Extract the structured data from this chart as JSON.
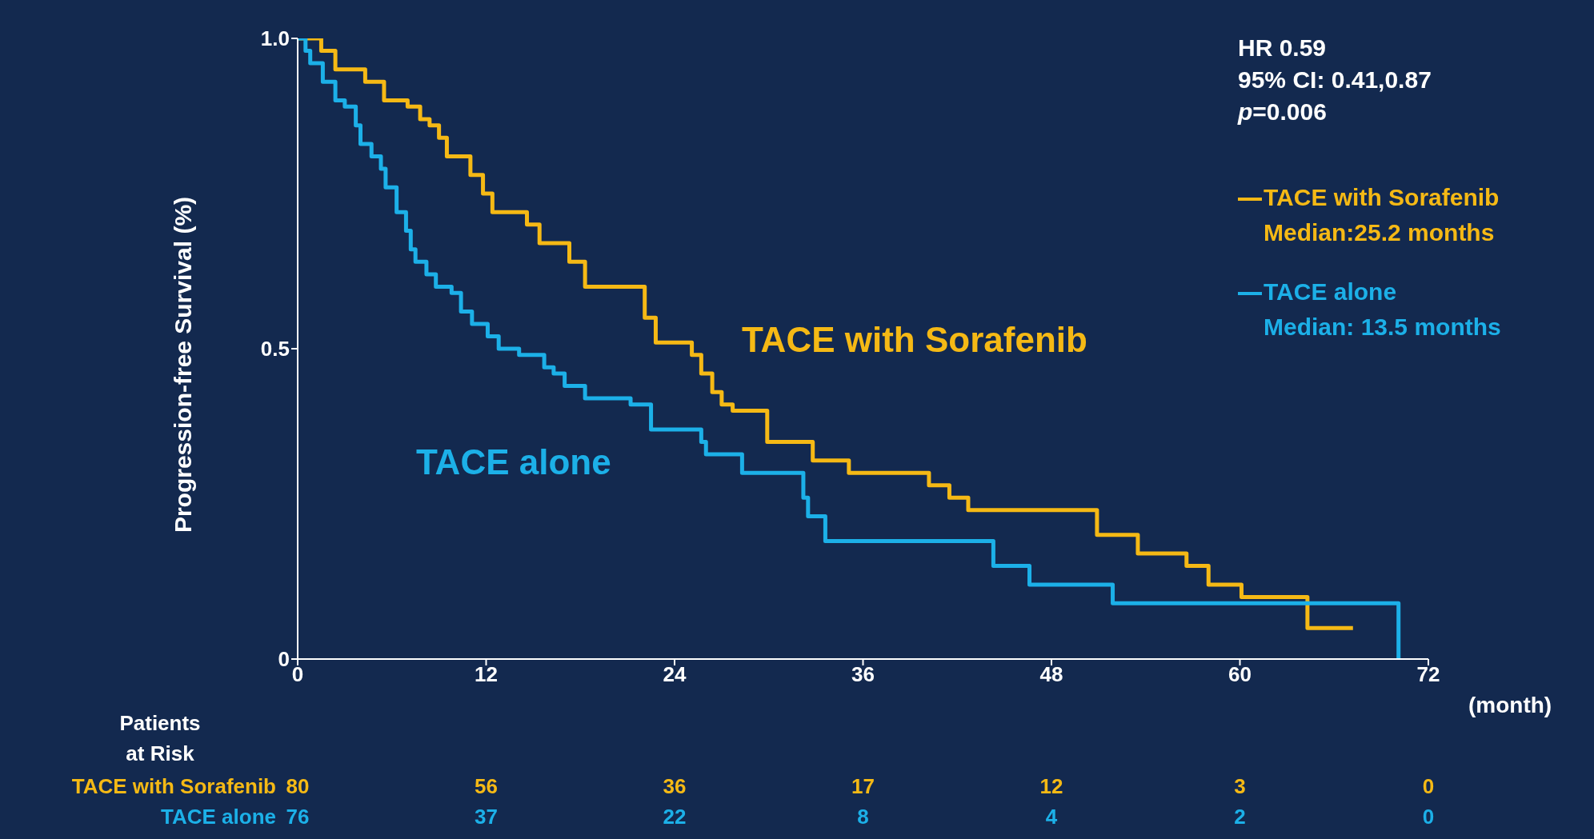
{
  "chart_data": {
    "type": "step",
    "ylabel": "Progression-free Survival (%)",
    "xlabel": "(month)",
    "xlim": [
      0,
      72
    ],
    "xticks": [
      0,
      12,
      24,
      36,
      48,
      60,
      72
    ],
    "ylim": [
      0,
      1
    ],
    "yticks": [
      0,
      {
        "value": 0.5,
        "label": "0.5"
      },
      {
        "value": 1,
        "label": "1.0"
      }
    ],
    "legend": "top right",
    "marker": "none",
    "line_style": "solid",
    "series": [
      {
        "name": "TACE with Sorafenib",
        "color": "#f5b915",
        "x": [
          0,
          1.5,
          2.4,
          4.3,
          5.5,
          7.0,
          7.8,
          8.4,
          9.0,
          9.5,
          11.0,
          11.8,
          12.4,
          14.6,
          15.4,
          17.3,
          18.3,
          22.1,
          22.8,
          25.1,
          25.7,
          26.4,
          27.0,
          27.7,
          29.9,
          32.8,
          35.1,
          40.2,
          41.5,
          42.7,
          50.9,
          53.5,
          56.6,
          58.0,
          60.1,
          64.3,
          67.2
        ],
        "values": [
          1.0,
          0.98,
          0.95,
          0.93,
          0.9,
          0.89,
          0.87,
          0.86,
          0.84,
          0.81,
          0.78,
          0.75,
          0.72,
          0.7,
          0.67,
          0.64,
          0.6,
          0.55,
          0.51,
          0.49,
          0.46,
          0.43,
          0.41,
          0.4,
          0.35,
          0.32,
          0.3,
          0.28,
          0.26,
          0.24,
          0.2,
          0.17,
          0.15,
          0.12,
          0.1,
          0.05,
          0.05
        ]
      },
      {
        "name": "TACE alone",
        "color": "#1cb0e8",
        "x": [
          0,
          0.5,
          0.8,
          1.6,
          2.4,
          3.0,
          3.7,
          4.0,
          4.7,
          5.3,
          5.6,
          6.3,
          6.9,
          7.2,
          7.5,
          8.2,
          8.8,
          9.8,
          10.4,
          11.1,
          12.1,
          12.8,
          14.1,
          15.7,
          16.3,
          17.0,
          18.3,
          19.2,
          21.2,
          22.5,
          25.7,
          26.0,
          28.3,
          32.2,
          32.5,
          33.6,
          44.3,
          46.6,
          51.9,
          70.1
        ],
        "values": [
          1.0,
          0.98,
          0.96,
          0.93,
          0.9,
          0.89,
          0.86,
          0.83,
          0.81,
          0.79,
          0.76,
          0.72,
          0.69,
          0.66,
          0.64,
          0.62,
          0.6,
          0.59,
          0.56,
          0.54,
          0.52,
          0.5,
          0.49,
          0.47,
          0.46,
          0.44,
          0.42,
          0.42,
          0.41,
          0.37,
          0.35,
          0.33,
          0.3,
          0.26,
          0.23,
          0.19,
          0.15,
          0.12,
          0.09,
          0
        ]
      }
    ],
    "annotations": [
      "HR 0.59",
      "95% CI: 0.41,0.87",
      "p=0.006",
      "Median:25.2 months",
      "Median: 13.5 months",
      "Patients at Risk",
      "80",
      "56",
      "36",
      "17",
      "12",
      "3",
      "0",
      "76",
      "37",
      "22",
      "8",
      "4",
      "2",
      "0"
    ]
  }
}
